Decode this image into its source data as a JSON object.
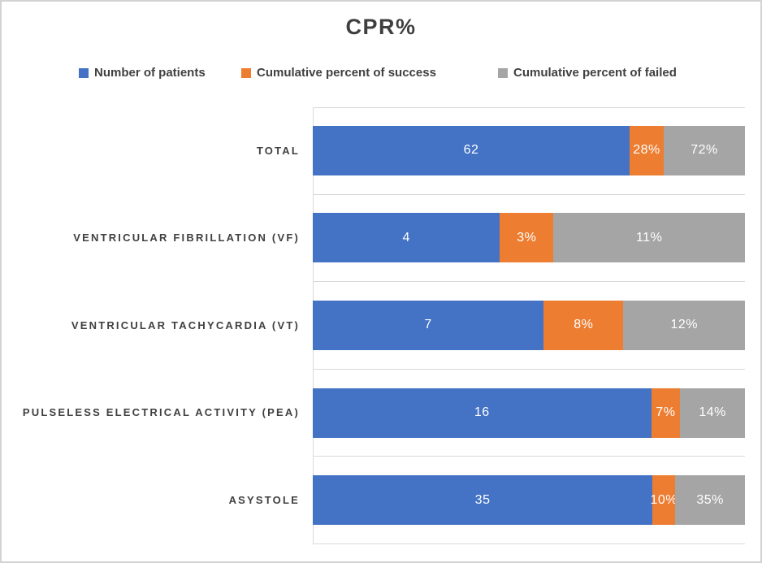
{
  "chart_data": {
    "type": "bar",
    "subtype": "horizontal_100pct_stacked",
    "title": "CPR%",
    "legend_position": "top",
    "value_axis_visible": false,
    "grid": "category-band-lines",
    "series": [
      {
        "key": "patients",
        "name": "Number of patients",
        "color": "#4472C4"
      },
      {
        "key": "success",
        "name": "Cumulative percent of success",
        "color": "#ED7D31"
      },
      {
        "key": "failed",
        "name": "Cumulative percent of failed",
        "color": "#A5A5A5"
      }
    ],
    "categories": [
      "TOTAL",
      "VENTRICULAR FIBRILLATION (VF)",
      "VENTRICULAR TACHYCARDIA (VT)",
      "PULSELESS ELECTRICAL ACTIVITY (PEA)",
      "ASYSTOLE"
    ],
    "series_values": {
      "number_of_patients": [
        62,
        4,
        7,
        16,
        35
      ],
      "cumulative_percent_of_success": [
        "28%",
        "3%",
        "8%",
        "7%",
        "10%"
      ],
      "cumulative_percent_of_failed": [
        "72%",
        "11%",
        "12%",
        "14%",
        "35%"
      ]
    },
    "rows": [
      {
        "category": "TOTAL",
        "segments": [
          {
            "label": "62",
            "width_pct": 73.3
          },
          {
            "label": "28%",
            "width_pct": 7.9
          },
          {
            "label": "72%",
            "width_pct": 18.8
          }
        ]
      },
      {
        "category": "VENTRICULAR FIBRILLATION (VF)",
        "segments": [
          {
            "label": "4",
            "width_pct": 43.3
          },
          {
            "label": "3%",
            "width_pct": 12.4
          },
          {
            "label": "11%",
            "width_pct": 44.3
          }
        ]
      },
      {
        "category": "VENTRICULAR TACHYCARDIA (VT)",
        "segments": [
          {
            "label": "7",
            "width_pct": 53.4
          },
          {
            "label": "8%",
            "width_pct": 18.5
          },
          {
            "label": "12%",
            "width_pct": 28.1
          }
        ]
      },
      {
        "category": "PULSELESS ELECTRICAL ACTIVITY (PEA)",
        "segments": [
          {
            "label": "16",
            "width_pct": 78.3
          },
          {
            "label": "7%",
            "width_pct": 6.7
          },
          {
            "label": "14%",
            "width_pct": 15.0
          }
        ]
      },
      {
        "category": "ASYSTOLE",
        "segments": [
          {
            "label": "35",
            "width_pct": 78.6
          },
          {
            "label": "10%",
            "width_pct": 5.3
          },
          {
            "label": "35%",
            "width_pct": 16.1
          }
        ]
      }
    ]
  }
}
